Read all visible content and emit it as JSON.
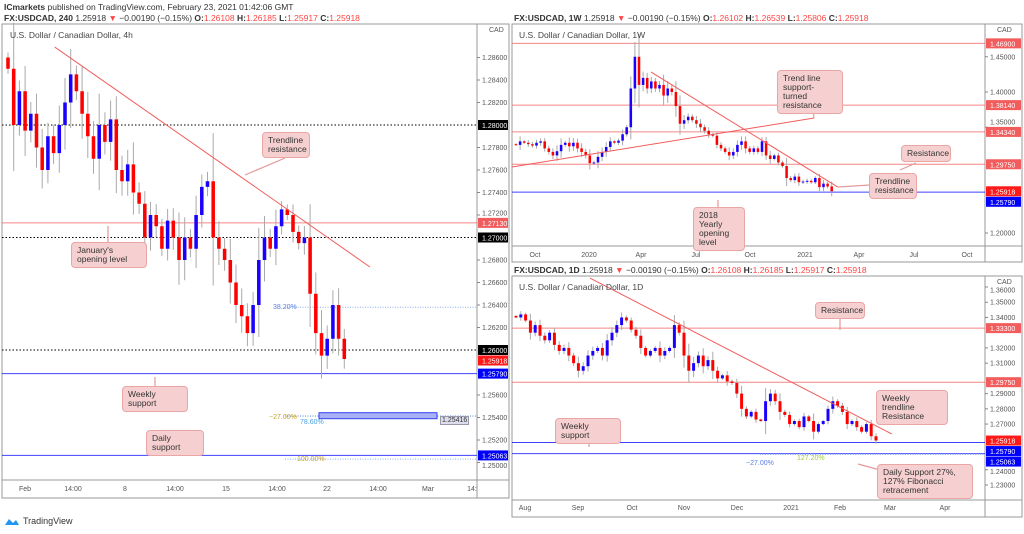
{
  "publisher": {
    "name": "ICmarkets",
    "text": "published on TradingView.com, February 23, 2021 01:42:06 GMT"
  },
  "quotes": {
    "h4": {
      "symbol": "FX:USDCAD, 240",
      "last": "1.25918",
      "arrow": "▼",
      "change": "−0.00190 (−0.15%)",
      "o": "1.26108",
      "h": "1.26185",
      "l": "1.25917",
      "c": "1.25918"
    },
    "w": {
      "symbol": "FX:USDCAD, 1W",
      "last": "1.25918",
      "arrow": "▼",
      "change": "−0.00190 (−0.15%)",
      "o": "1.26102",
      "h": "1.26539",
      "l": "1.25806",
      "c": "1.25918"
    },
    "d": {
      "symbol": "FX:USDCAD, 1D",
      "last": "1.25918",
      "arrow": "▼",
      "change": "−0.00190 (−0.15%)",
      "o": "1.26108",
      "h": "1.26185",
      "l": "1.25917",
      "c": "1.25918"
    }
  },
  "labels": {
    "o": "O:",
    "h": "H:",
    "l": "L:",
    "c": "C:"
  },
  "annotations": {
    "h4_trendline": "Trendline resistance",
    "h4_january": "January's opening level",
    "h4_weekly_support": "Weekly support",
    "h4_daily_support": "Daily support",
    "w_trendline_support": "Trend line support-turned resistance",
    "w_resistance": "Resistance",
    "w_trendline": "Trendline resistance",
    "w_2018": "2018 Yearly opening level",
    "d_resistance": "Resistance",
    "d_weekly_trendline": "Weekly trendline Resistance",
    "d_weekly_support": "Weekly support",
    "d_daily_support": "Daily Support 27%, 127% Fibonacci retracement"
  },
  "fib_labels": {
    "h4_382": "38.20%",
    "h4_m27": "−27.00%",
    "h4_786": "78.60%",
    "h4_100": "100.00%",
    "h4_box": "1.25416",
    "d_m27": "−27.00%",
    "d_1272": "127.20%"
  },
  "brand": "TradingView",
  "colors": {
    "up": "#1a00ff",
    "down": "#ff0000",
    "resistance": "#f25c5c",
    "support": "#6b6bff",
    "badge_black": "#000000",
    "badge_red": "#ff1a1a",
    "badge_blue": "#0000ff"
  },
  "chart_data": [
    {
      "id": "h4",
      "type": "candlestick",
      "title": "U.S. Dollar / Canadian Dollar, 4h",
      "currency": "CAD",
      "closes": [
        1.285,
        1.28,
        1.283,
        1.2795,
        1.281,
        1.278,
        1.276,
        1.279,
        1.2775,
        1.28,
        1.282,
        1.2845,
        1.283,
        1.281,
        1.279,
        1.277,
        1.28,
        1.2785,
        1.2805,
        1.276,
        1.275,
        1.2765,
        1.274,
        1.273,
        1.27,
        1.272,
        1.271,
        1.269,
        1.2715,
        1.27,
        1.268,
        1.27,
        1.269,
        1.272,
        1.2745,
        1.275,
        1.27,
        1.269,
        1.268,
        1.266,
        1.264,
        1.263,
        1.2615,
        1.264,
        1.268,
        1.27,
        1.269,
        1.271,
        1.2725,
        1.272,
        1.2705,
        1.2695,
        1.27,
        1.265,
        1.2615,
        1.2595,
        1.261,
        1.264,
        1.261,
        1.2592
      ],
      "x_ticks": [
        "Feb",
        "14:00",
        "8",
        "14:00",
        "15",
        "14:00",
        "22",
        "14:00",
        "Mar",
        "14:"
      ],
      "y_ticks": [
        "1.28600",
        "1.28400",
        "1.28200",
        "1.27800",
        "1.27600",
        "1.27400",
        "1.27200",
        "1.26800",
        "1.26600",
        "1.26400",
        "1.26200",
        "1.25600",
        "1.25400",
        "1.25200",
        "1.25000"
      ],
      "levels": [
        {
          "price": 1.28,
          "label": "1.28000",
          "style": "dotted",
          "color": "#000000"
        },
        {
          "price": 1.2713,
          "label": "1.27130",
          "style": "solid",
          "color": "#f25c5c"
        },
        {
          "price": 1.27,
          "label": "1.27000",
          "style": "dotted",
          "color": "#000000"
        },
        {
          "price": 1.26,
          "label": "1.26000",
          "style": "dotted",
          "color": "#000000"
        },
        {
          "price": 1.25918,
          "label": "1.25918",
          "style": "none",
          "color": "#ff1a1a"
        },
        {
          "price": 1.2579,
          "label": "1.25790",
          "style": "solid",
          "color": "#0000ff"
        },
        {
          "price": 1.25063,
          "label": "1.25063",
          "style": "solid",
          "color": "#0000ff"
        }
      ],
      "fib_levels": [
        {
          "price": 1.2638,
          "name": "38.20%"
        },
        {
          "price": 1.2541,
          "name": "-27.00%"
        },
        {
          "price": 1.25416,
          "name": "78.60%"
        },
        {
          "price": 1.2503,
          "name": "100.00%"
        }
      ],
      "trendlines": [
        {
          "from": [
            8.2,
            1.28693
          ],
          "to": [
            63.5,
            1.26738
          ]
        }
      ]
    },
    {
      "id": "w",
      "type": "candlestick",
      "title": "U.S. Dollar / Canadian Dollar, 1W",
      "currency": "CAD",
      "closes": [
        1.325,
        1.33,
        1.328,
        1.326,
        1.324,
        1.328,
        1.33,
        1.32,
        1.315,
        1.31,
        1.316,
        1.325,
        1.328,
        1.323,
        1.328,
        1.32,
        1.315,
        1.31,
        1.299,
        1.3,
        1.308,
        1.315,
        1.322,
        1.33,
        1.328,
        1.331,
        1.34,
        1.35,
        1.405,
        1.45,
        1.41,
        1.42,
        1.405,
        1.415,
        1.405,
        1.41,
        1.395,
        1.405,
        1.4,
        1.38,
        1.355,
        1.36,
        1.365,
        1.36,
        1.355,
        1.35,
        1.345,
        1.34,
        1.338,
        1.325,
        1.32,
        1.315,
        1.31,
        1.315,
        1.325,
        1.33,
        1.32,
        1.315,
        1.32,
        1.315,
        1.33,
        1.31,
        1.305,
        1.31,
        1.3,
        1.295,
        1.278,
        1.275,
        1.28,
        1.272,
        1.273,
        1.274,
        1.272,
        1.278,
        1.265,
        1.27,
        1.266,
        1.2592
      ],
      "x_ticks": [
        "Oct",
        "2020",
        "Apr",
        "Jul",
        "Oct",
        "2021",
        "Apr",
        "Jul",
        "Oct"
      ],
      "y_ticks": [
        "1.45000",
        "1.40000",
        "1.35000",
        "1.20000"
      ],
      "levels": [
        {
          "price": 1.469,
          "label": "1.46900",
          "style": "solid",
          "color": "#f25c5c"
        },
        {
          "price": 1.3814,
          "label": "1.38140",
          "style": "solid",
          "color": "#f25c5c"
        },
        {
          "price": 1.3434,
          "label": "1.34340",
          "style": "solid",
          "color": "#f25c5c"
        },
        {
          "price": 1.2975,
          "label": "1.29750",
          "style": "solid",
          "color": "#f25c5c"
        },
        {
          "price": 1.25918,
          "label": "1.25918",
          "style": "none",
          "color": "#ff1a1a"
        },
        {
          "price": 1.2579,
          "label": "1.25790",
          "style": "solid",
          "color": "#0000ff"
        }
      ],
      "trendlines": [
        {
          "from": [
            32.9,
            1.4284
          ],
          "to": [
            78.5,
            1.2652
          ]
        },
        {
          "from": [
            -1,
            1.2936
          ],
          "to": [
            72.7,
            1.3631
          ]
        }
      ]
    },
    {
      "id": "d",
      "type": "candlestick",
      "title": "U.S. Dollar / Canadian Dollar, 1D",
      "currency": "CAD",
      "closes": [
        1.34,
        1.342,
        1.338,
        1.33,
        1.335,
        1.328,
        1.325,
        1.33,
        1.322,
        1.318,
        1.32,
        1.315,
        1.31,
        1.305,
        1.308,
        1.315,
        1.318,
        1.32,
        1.315,
        1.325,
        1.33,
        1.335,
        1.34,
        1.338,
        1.332,
        1.328,
        1.32,
        1.315,
        1.318,
        1.32,
        1.315,
        1.318,
        1.32,
        1.335,
        1.33,
        1.315,
        1.305,
        1.31,
        1.315,
        1.308,
        1.312,
        1.305,
        1.3,
        1.302,
        1.298,
        1.297,
        1.29,
        1.28,
        1.275,
        1.278,
        1.273,
        1.272,
        1.285,
        1.29,
        1.285,
        1.278,
        1.276,
        1.27,
        1.272,
        1.268,
        1.275,
        1.272,
        1.265,
        1.27,
        1.272,
        1.28,
        1.285,
        1.282,
        1.278,
        1.27,
        1.272,
        1.268,
        1.265,
        1.27,
        1.262,
        1.2592
      ],
      "x_ticks": [
        "Aug",
        "Sep",
        "Oct",
        "Nov",
        "Dec",
        "2021",
        "Feb",
        "Mar",
        "Apr"
      ],
      "y_ticks": [
        "1.36000",
        "1.35000",
        "1.34000",
        "1.32000",
        "1.31000",
        "1.29000",
        "1.28000",
        "1.27000",
        "1.24000",
        "1.23000"
      ],
      "levels": [
        {
          "price": 1.333,
          "label": "1.33300",
          "style": "solid",
          "color": "#f25c5c"
        },
        {
          "price": 1.2975,
          "label": "1.29750",
          "style": "solid",
          "color": "#f25c5c"
        },
        {
          "price": 1.25918,
          "label": "1.25918",
          "style": "none",
          "color": "#ff1a1a"
        },
        {
          "price": 1.2579,
          "label": "1.25790",
          "style": "solid",
          "color": "#0000ff"
        },
        {
          "price": 1.25063,
          "label": "1.25063",
          "style": "solid",
          "color": "#0000ff"
        }
      ],
      "fib_levels": [
        {
          "price": 1.25,
          "name": "-27.00%"
        },
        {
          "price": 1.2503,
          "name": "127.20%"
        }
      ],
      "trendlines": [
        {
          "from": [
            15.4,
            1.3659
          ],
          "to": [
            78.3,
            1.2635
          ]
        }
      ]
    }
  ]
}
